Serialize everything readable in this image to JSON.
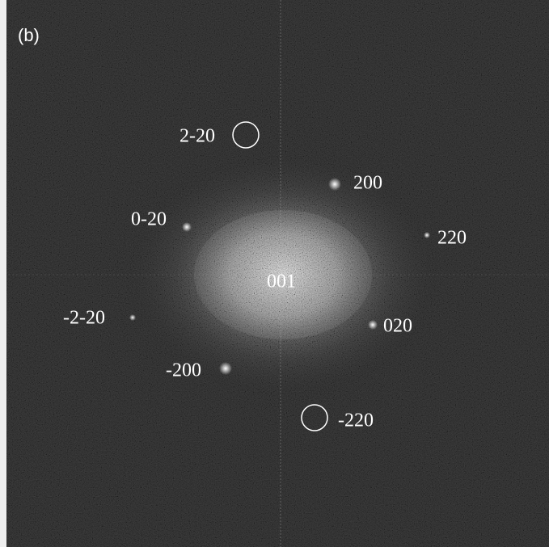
{
  "panel_label": "(b)",
  "center_label": "001",
  "spot_labels": [
    "2-20",
    "200",
    "0-20",
    "220",
    "-2-20",
    "020",
    "-200",
    "-220"
  ]
}
